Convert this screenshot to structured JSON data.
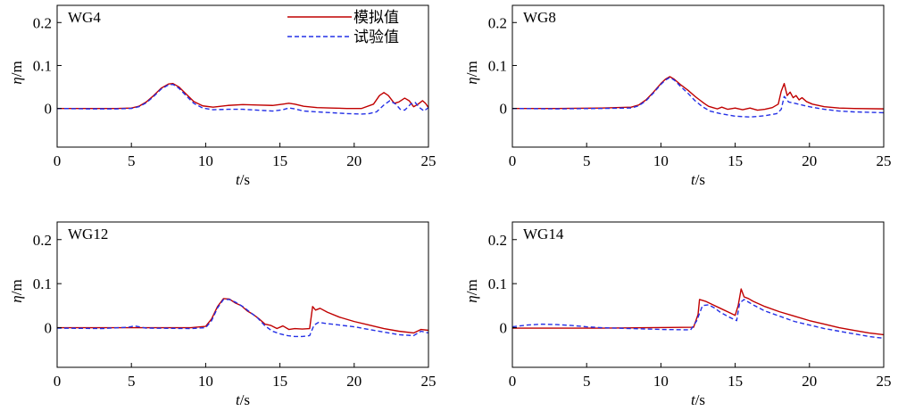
{
  "chart_data": [
    {
      "type": "line",
      "title": "WG4",
      "xlabel": {
        "var": "t",
        "unit": "/s"
      },
      "ylabel": {
        "var": "η",
        "unit": "/m"
      },
      "xlim": [
        0,
        25
      ],
      "ylim": [
        -0.09,
        0.24
      ],
      "xticks": [
        0,
        5,
        10,
        15,
        20,
        25
      ],
      "yticks": [
        0,
        0.1,
        0.2
      ],
      "ytick_labels": [
        "0",
        "0.1",
        "0.2"
      ],
      "grid": false,
      "legend": {
        "placement": "top-right"
      },
      "series": [
        {
          "name": "模拟值",
          "style": "solid",
          "x": [
            0,
            2,
            4,
            5,
            5.5,
            6,
            6.5,
            7,
            7.5,
            7.8,
            8.2,
            8.7,
            9.2,
            9.8,
            10.5,
            11.5,
            12.5,
            13.5,
            14.5,
            15.2,
            15.6,
            16.0,
            16.6,
            17.5,
            18.5,
            19.5,
            20.5,
            21.3,
            21.7,
            22.0,
            22.3,
            22.7,
            23.0,
            23.4,
            23.7,
            24.0,
            24.3,
            24.6,
            24.8,
            25
          ],
          "y": [
            0,
            0,
            0,
            0.001,
            0.005,
            0.015,
            0.03,
            0.047,
            0.057,
            0.058,
            0.05,
            0.033,
            0.016,
            0.006,
            0.003,
            0.007,
            0.009,
            0.008,
            0.007,
            0.01,
            0.012,
            0.01,
            0.005,
            0.002,
            0.001,
            0,
            0,
            0.01,
            0.03,
            0.037,
            0.03,
            0.012,
            0.015,
            0.024,
            0.018,
            0.004,
            0.01,
            0.018,
            0.012,
            0.002
          ]
        },
        {
          "name": "试验值",
          "style": "dashed",
          "x": [
            0,
            2,
            4,
            5,
            5.5,
            6,
            6.5,
            7,
            7.5,
            7.8,
            8.2,
            8.7,
            9.2,
            9.8,
            10.5,
            11.5,
            12.5,
            13.5,
            14.5,
            15.2,
            15.6,
            16.0,
            16.6,
            17.5,
            18.5,
            19.5,
            20.5,
            21.0,
            21.5,
            22.0,
            22.4,
            22.8,
            23.1,
            23.4,
            23.8,
            24.1,
            24.4,
            24.7,
            25
          ],
          "y": [
            0,
            -0.001,
            -0.001,
            0,
            0.004,
            0.013,
            0.028,
            0.045,
            0.055,
            0.056,
            0.047,
            0.029,
            0.012,
            0.001,
            -0.003,
            -0.002,
            -0.002,
            -0.004,
            -0.006,
            -0.003,
            0.001,
            -0.001,
            -0.006,
            -0.008,
            -0.01,
            -0.012,
            -0.013,
            -0.012,
            -0.008,
            0.008,
            0.018,
            0.01,
            -0.002,
            -0.004,
            0.01,
            0.014,
            0.002,
            -0.006,
            0.002
          ]
        }
      ]
    },
    {
      "type": "line",
      "title": "WG8",
      "xlabel": {
        "var": "t",
        "unit": "/s"
      },
      "ylabel": {
        "var": "η",
        "unit": "/m"
      },
      "xlim": [
        0,
        25
      ],
      "ylim": [
        -0.09,
        0.24
      ],
      "xticks": [
        0,
        5,
        10,
        15,
        20,
        25
      ],
      "yticks": [
        0,
        0.1,
        0.2
      ],
      "ytick_labels": [
        "0",
        "0.1",
        "0.2"
      ],
      "grid": false,
      "series": [
        {
          "name": "模拟值",
          "style": "solid",
          "x": [
            0,
            3,
            6,
            8,
            8.5,
            9,
            9.5,
            10,
            10.3,
            10.6,
            10.9,
            11.3,
            11.8,
            12.3,
            12.6,
            12.9,
            13.2,
            13.5,
            13.8,
            14.1,
            14.5,
            15.0,
            15.5,
            16.0,
            16.5,
            17.0,
            17.5,
            17.9,
            18.1,
            18.3,
            18.5,
            18.7,
            18.9,
            19.1,
            19.3,
            19.5,
            19.8,
            20.2,
            21,
            22,
            23,
            25
          ],
          "y": [
            0,
            0,
            0.001,
            0.003,
            0.008,
            0.02,
            0.038,
            0.058,
            0.068,
            0.074,
            0.068,
            0.056,
            0.043,
            0.028,
            0.02,
            0.012,
            0.005,
            0.002,
            -0.001,
            0.003,
            -0.002,
            0.001,
            -0.003,
            0.001,
            -0.004,
            -0.002,
            0.002,
            0.01,
            0.04,
            0.058,
            0.03,
            0.038,
            0.025,
            0.03,
            0.02,
            0.025,
            0.016,
            0.01,
            0.004,
            0.001,
            0,
            -0.001
          ]
        },
        {
          "name": "试验值",
          "style": "dashed",
          "x": [
            0,
            3,
            6,
            8,
            8.5,
            9,
            9.5,
            10,
            10.3,
            10.6,
            10.9,
            11.3,
            11.8,
            12.3,
            12.8,
            13.3,
            14,
            15,
            16,
            17,
            17.8,
            18.1,
            18.3,
            18.6,
            19,
            19.5,
            20,
            21,
            22,
            23,
            24,
            25
          ],
          "y": [
            0,
            -0.001,
            0,
            0.001,
            0.006,
            0.018,
            0.036,
            0.056,
            0.066,
            0.072,
            0.066,
            0.052,
            0.036,
            0.018,
            0.004,
            -0.006,
            -0.012,
            -0.018,
            -0.02,
            -0.017,
            -0.012,
            -0.002,
            0.028,
            0.015,
            0.012,
            0.008,
            0.004,
            -0.002,
            -0.006,
            -0.008,
            -0.009,
            -0.01
          ]
        }
      ]
    },
    {
      "type": "line",
      "title": "WG12",
      "xlabel": {
        "var": "t",
        "unit": "/s"
      },
      "ylabel": {
        "var": "η",
        "unit": "/m"
      },
      "xlim": [
        0,
        25
      ],
      "ylim": [
        -0.09,
        0.24
      ],
      "xticks": [
        0,
        5,
        10,
        15,
        20,
        25
      ],
      "yticks": [
        0,
        0.1,
        0.2
      ],
      "ytick_labels": [
        "0",
        "0.1",
        "0.2"
      ],
      "grid": false,
      "series": [
        {
          "name": "模拟值",
          "style": "solid",
          "x": [
            0,
            3,
            6,
            9,
            10,
            10.4,
            10.8,
            11.2,
            11.6,
            12.0,
            12.4,
            12.8,
            13.2,
            13.6,
            14.0,
            14.4,
            14.8,
            15.2,
            15.6,
            16.0,
            16.5,
            17.0,
            17.2,
            17.4,
            17.7,
            18.2,
            19,
            20,
            21,
            22,
            23,
            24,
            24.5,
            25
          ],
          "y": [
            0,
            0,
            0,
            0,
            0.003,
            0.02,
            0.048,
            0.066,
            0.065,
            0.056,
            0.05,
            0.038,
            0.03,
            0.02,
            0.008,
            0.005,
            -0.002,
            0.004,
            -0.004,
            -0.002,
            -0.003,
            -0.002,
            0.048,
            0.04,
            0.044,
            0.035,
            0.024,
            0.014,
            0.006,
            -0.002,
            -0.008,
            -0.012,
            -0.004,
            -0.006
          ]
        },
        {
          "name": "试验值",
          "style": "dashed",
          "x": [
            0,
            3,
            4.8,
            5.2,
            6,
            9,
            10,
            10.4,
            10.8,
            11.2,
            11.6,
            12.0,
            12.5,
            13,
            13.5,
            14,
            14.5,
            15,
            15.5,
            16,
            16.5,
            17.0,
            17.3,
            17.6,
            18,
            19,
            20,
            21,
            22,
            23,
            24,
            24.5,
            25
          ],
          "y": [
            -0.001,
            -0.002,
            0.001,
            0.004,
            -0.001,
            -0.002,
            0,
            0.016,
            0.045,
            0.064,
            0.064,
            0.058,
            0.048,
            0.035,
            0.022,
            0.004,
            -0.008,
            -0.014,
            -0.018,
            -0.02,
            -0.02,
            -0.018,
            0.006,
            0.012,
            0.01,
            0.006,
            0.002,
            -0.004,
            -0.01,
            -0.016,
            -0.018,
            -0.008,
            -0.012
          ]
        }
      ]
    },
    {
      "type": "line",
      "title": "WG14",
      "xlabel": {
        "var": "t",
        "unit": "/s"
      },
      "ylabel": {
        "var": "η",
        "unit": "/m"
      },
      "xlim": [
        0,
        25
      ],
      "ylim": [
        -0.09,
        0.24
      ],
      "xticks": [
        0,
        5,
        10,
        15,
        20,
        25
      ],
      "yticks": [
        0,
        0.1,
        0.2
      ],
      "ytick_labels": [
        "0",
        "0.1",
        "0.2"
      ],
      "grid": false,
      "series": [
        {
          "name": "模拟值",
          "style": "solid",
          "x": [
            0,
            3,
            6,
            9,
            12.2,
            12.5,
            12.6,
            13.0,
            13.5,
            14,
            14.5,
            15.0,
            15.2,
            15.4,
            15.6,
            15.9,
            16.2,
            17,
            18,
            19,
            20,
            21,
            22,
            23,
            24,
            25
          ],
          "y": [
            -0.001,
            -0.001,
            -0.001,
            0,
            0.001,
            0.03,
            0.064,
            0.06,
            0.052,
            0.044,
            0.036,
            0.028,
            0.05,
            0.088,
            0.07,
            0.066,
            0.06,
            0.048,
            0.036,
            0.026,
            0.016,
            0.008,
            0,
            -0.006,
            -0.012,
            -0.016
          ]
        },
        {
          "name": "试验值",
          "style": "dashed",
          "x": [
            0,
            1,
            2,
            3,
            4,
            5,
            6,
            8,
            10,
            12,
            12.4,
            12.8,
            13.2,
            13.6,
            14,
            14.6,
            15.1,
            15.3,
            15.6,
            15.9,
            16.2,
            17,
            18,
            19,
            20,
            21,
            22,
            23,
            24,
            25
          ],
          "y": [
            0.002,
            0.006,
            0.008,
            0.007,
            0.005,
            0.002,
            0,
            -0.002,
            -0.004,
            -0.005,
            0.015,
            0.05,
            0.052,
            0.045,
            0.035,
            0.024,
            0.016,
            0.056,
            0.064,
            0.058,
            0.052,
            0.038,
            0.026,
            0.014,
            0.006,
            -0.002,
            -0.008,
            -0.014,
            -0.02,
            -0.024
          ]
        }
      ]
    }
  ],
  "colors": {
    "simulated": "#c00000",
    "experimental": "#2430e6",
    "axis": "#000000"
  }
}
